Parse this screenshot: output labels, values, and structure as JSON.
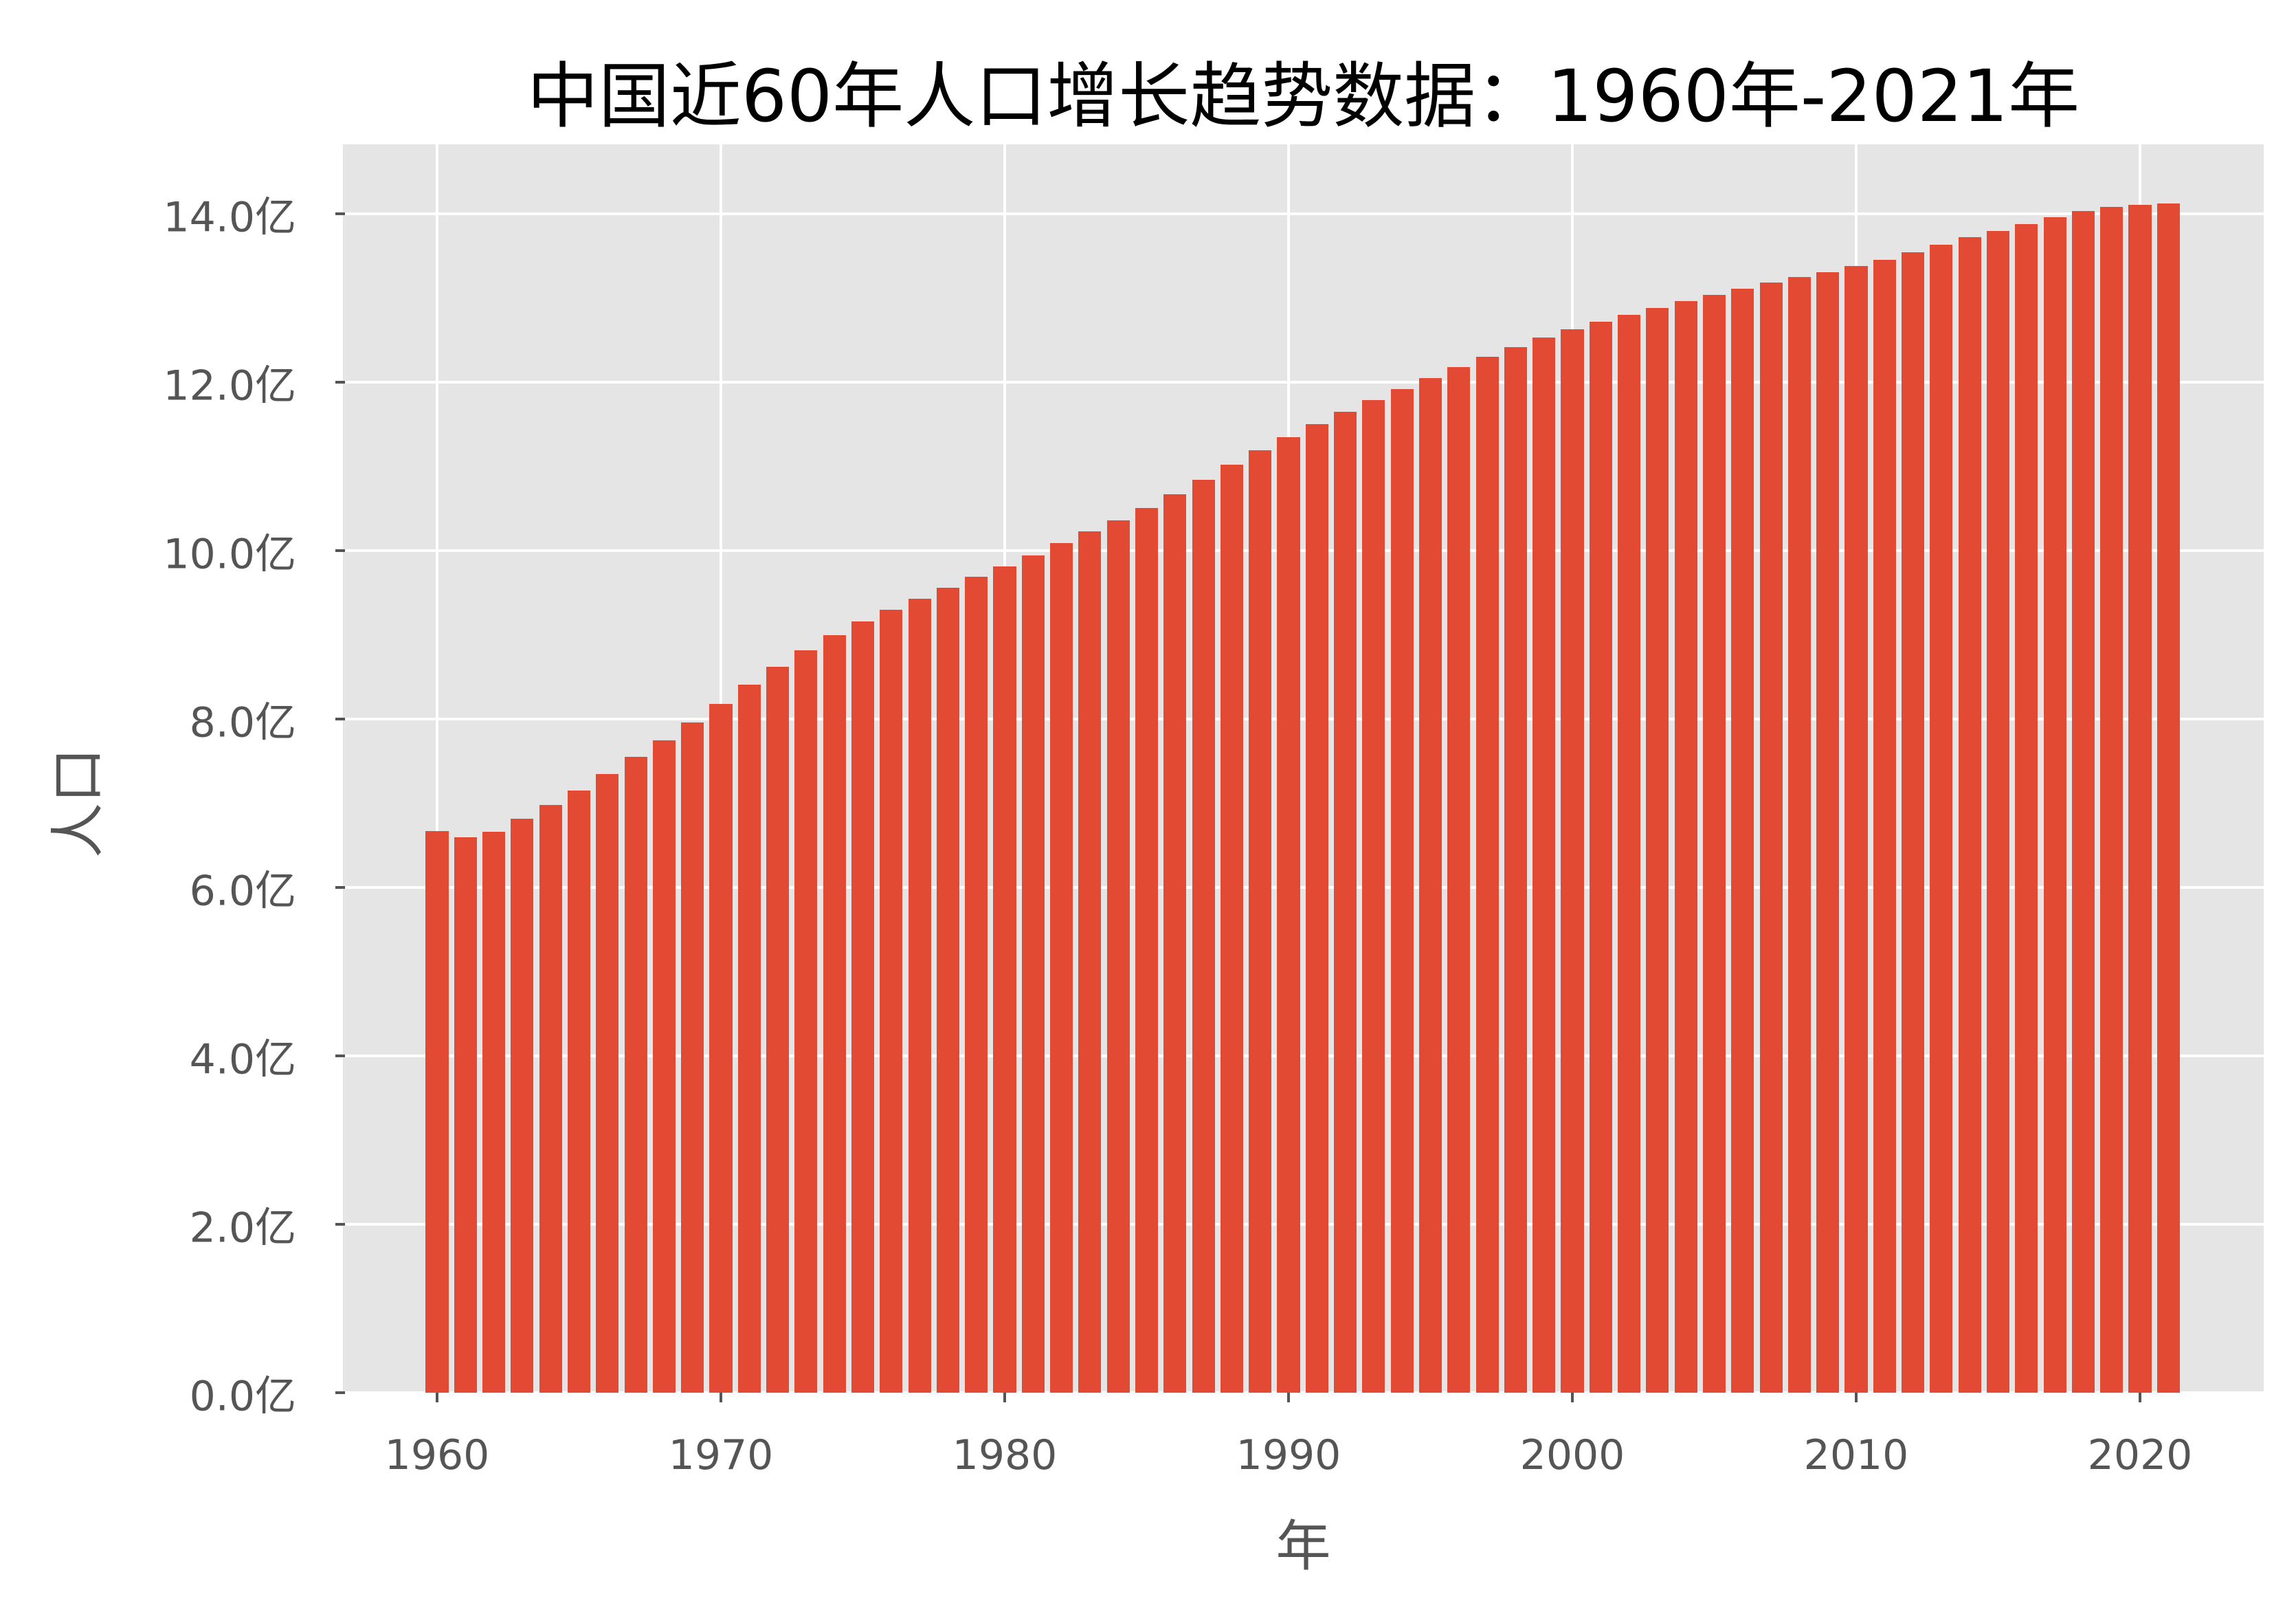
{
  "chart_data": {
    "type": "bar",
    "title": "中国近60年人口增长趋势数据：1960年-2021年",
    "xlabel": "年",
    "ylabel": "人口",
    "ylim": [
      0,
      14.8
    ],
    "xlim": [
      1956.7,
      2024.4
    ],
    "grid": true,
    "bar_color": "#e24a33",
    "background_color": "#e5e5e5",
    "y_unit": "亿",
    "y_ticks": [
      0,
      2,
      4,
      6,
      8,
      10,
      12,
      14
    ],
    "y_tick_labels": [
      "0.0亿",
      "2.0亿",
      "4.0亿",
      "6.0亿",
      "8.0亿",
      "10.0亿",
      "12.0亿",
      "14.0亿"
    ],
    "x_ticks": [
      1960,
      1970,
      1980,
      1990,
      2000,
      2010,
      2020
    ],
    "x_tick_labels": [
      "1960",
      "1970",
      "1980",
      "1990",
      "2000",
      "2010",
      "2020"
    ],
    "categories": [
      1960,
      1961,
      1962,
      1963,
      1964,
      1965,
      1966,
      1967,
      1968,
      1969,
      1970,
      1971,
      1972,
      1973,
      1974,
      1975,
      1976,
      1977,
      1978,
      1979,
      1980,
      1981,
      1982,
      1983,
      1984,
      1985,
      1986,
      1987,
      1988,
      1989,
      1990,
      1991,
      1992,
      1993,
      1994,
      1995,
      1996,
      1997,
      1998,
      1999,
      2000,
      2001,
      2002,
      2003,
      2004,
      2005,
      2006,
      2007,
      2008,
      2009,
      2010,
      2011,
      2012,
      2013,
      2014,
      2015,
      2016,
      2017,
      2018,
      2019,
      2020,
      2021
    ],
    "values": [
      6.67,
      6.6,
      6.66,
      6.82,
      6.98,
      7.15,
      7.35,
      7.55,
      7.75,
      7.96,
      8.18,
      8.41,
      8.62,
      8.82,
      9.0,
      9.16,
      9.3,
      9.43,
      9.56,
      9.69,
      9.81,
      9.94,
      10.09,
      10.23,
      10.36,
      10.51,
      10.67,
      10.84,
      11.02,
      11.19,
      11.35,
      11.5,
      11.65,
      11.79,
      11.92,
      12.05,
      12.18,
      12.3,
      12.42,
      12.53,
      12.63,
      12.72,
      12.8,
      12.88,
      12.96,
      13.04,
      13.11,
      13.18,
      13.25,
      13.31,
      13.38,
      13.45,
      13.54,
      13.63,
      13.72,
      13.8,
      13.88,
      13.96,
      14.03,
      14.08,
      14.11,
      14.12
    ]
  }
}
